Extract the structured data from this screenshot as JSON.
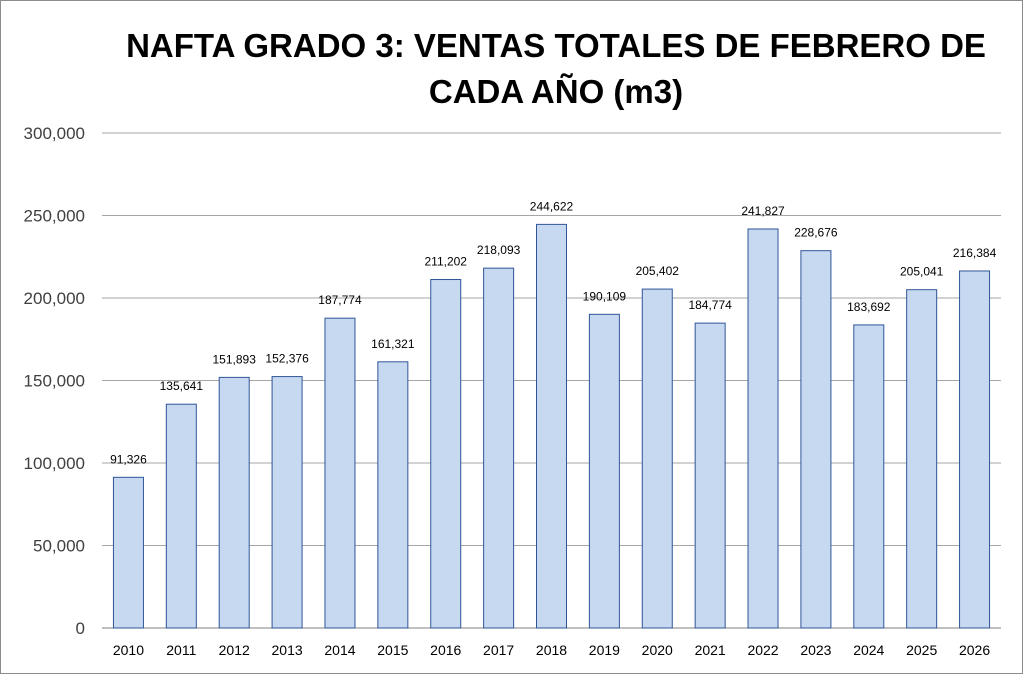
{
  "chart_data": {
    "type": "bar",
    "title_line1": "NAFTA GRADO 3: VENTAS TOTALES DE FEBRERO DE",
    "title_line2": "CADA AÑO (m3)",
    "xlabel": "",
    "ylabel": "",
    "ylim": [
      0,
      300000
    ],
    "yticks": [
      0,
      50000,
      100000,
      150000,
      200000,
      250000,
      300000
    ],
    "ytick_labels": [
      "0",
      "50,000",
      "100,000",
      "150,000",
      "200,000",
      "250,000",
      "300,000"
    ],
    "grid": true,
    "categories": [
      "2010",
      "2011",
      "2012",
      "2013",
      "2014",
      "2015",
      "2016",
      "2017",
      "2018",
      "2019",
      "2020",
      "2021",
      "2022",
      "2023",
      "2024",
      "2025",
      "2026"
    ],
    "values": [
      91326,
      135641,
      151893,
      152376,
      187774,
      161321,
      211202,
      218093,
      244622,
      190109,
      205402,
      184774,
      241827,
      228676,
      183692,
      205041,
      216384
    ],
    "data_labels": [
      "91,326",
      "135,641",
      "151,893",
      "152,376",
      "187,774",
      "161,321",
      "211,202",
      "218,093",
      "244,622",
      "190,109",
      "205,402",
      "184,774",
      "241,827",
      "228,676",
      "183,692",
      "205,041",
      "216,384"
    ],
    "colors": {
      "bar_fill": "#c6d9f1",
      "bar_stroke": "#2f5597",
      "grid": "#a6a6a6"
    }
  }
}
